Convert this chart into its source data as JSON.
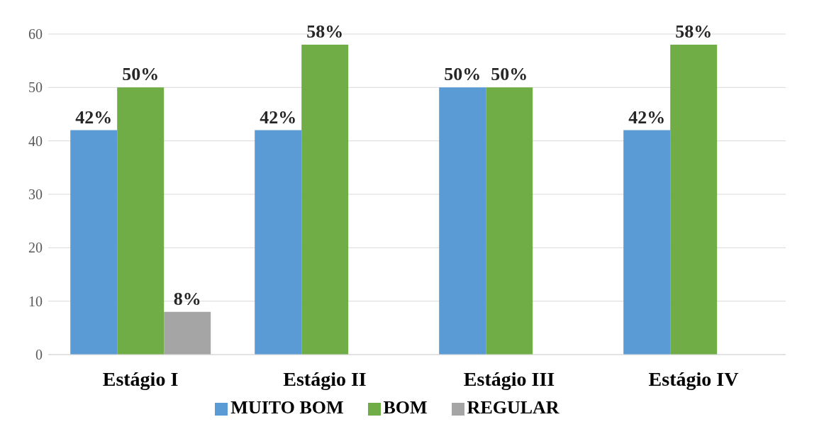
{
  "chart_data": {
    "type": "bar",
    "categories": [
      "Estágio I",
      "Estágio II",
      "Estágio III",
      "Estágio IV"
    ],
    "series": [
      {
        "name": "MUITO BOM",
        "color": "#5b9bd5",
        "values": [
          42,
          42,
          50,
          42
        ],
        "value_labels": [
          "42%",
          "42%",
          "50%",
          "42%"
        ]
      },
      {
        "name": "BOM",
        "color": "#70ad47",
        "values": [
          50,
          58,
          50,
          58
        ],
        "value_labels": [
          "50%",
          "58%",
          "50%",
          "58%"
        ]
      },
      {
        "name": "REGULAR",
        "color": "#a5a5a5",
        "values": [
          8,
          null,
          null,
          null
        ],
        "value_labels": [
          "8%",
          null,
          null,
          null
        ]
      }
    ],
    "ylim": [
      0,
      60
    ],
    "yticks": [
      0,
      10,
      20,
      30,
      40,
      50,
      60
    ],
    "grid": "y",
    "legend": "bottom"
  }
}
